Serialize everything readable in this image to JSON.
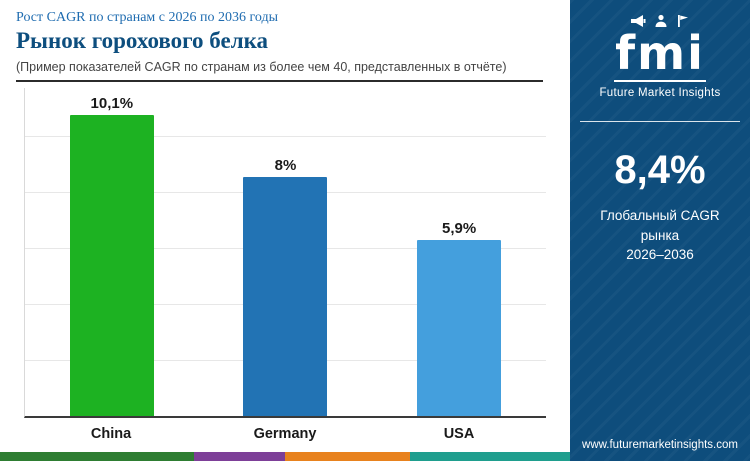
{
  "header": {
    "eyebrow": "Рост CAGR по странам с 2026 по 2036 годы",
    "title": "Рынок горохового белка",
    "subtitle": "(Пример показателей CAGR по странам из более чем 40, представленных в отчёте)"
  },
  "chart_data": {
    "type": "bar",
    "categories": [
      "China",
      "Germany",
      "USA"
    ],
    "values": [
      10.1,
      8,
      5.9
    ],
    "value_labels": [
      "10,1%",
      "8%",
      "5,9%"
    ],
    "bar_colors": [
      "#1db222",
      "#2273b4",
      "#449fdd"
    ],
    "title": "Рынок горохового белка",
    "xlabel": "",
    "ylabel": "",
    "ylim": [
      0,
      11
    ],
    "grid": true,
    "legend": "none"
  },
  "sidebar": {
    "logo_text": "fmi",
    "logo_icons": [
      "megaphone-icon",
      "person-icon",
      "flag-icon"
    ],
    "brand": "Future Market Insights",
    "cagr_value": "8,4%",
    "cagr_caption_line1": "Глобальный CAGR рынка",
    "cagr_caption_line2": "2026–2036",
    "website": "www.futuremarketinsights.com",
    "bg_color": "#0e4d7c"
  },
  "footer": {
    "segment_colors": [
      "#2e7d32",
      "#7d3f98",
      "#e8821e",
      "#1f9e8e"
    ]
  }
}
